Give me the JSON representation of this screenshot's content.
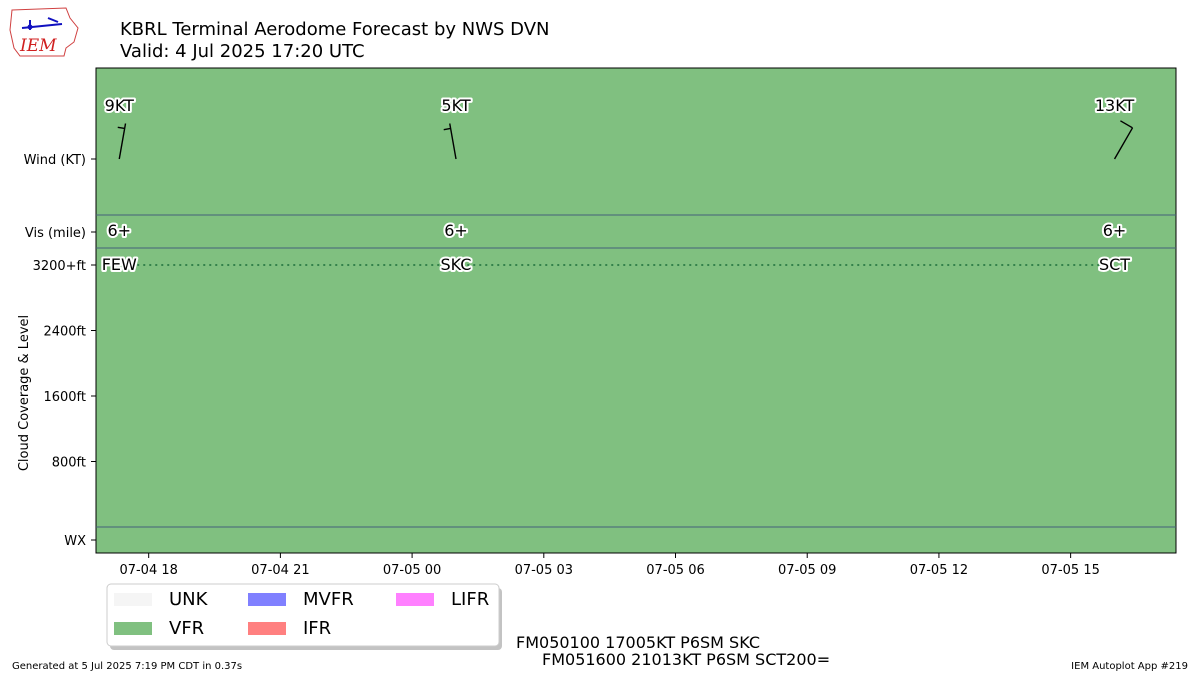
{
  "logo": {
    "text": "IEM"
  },
  "header": {
    "title_line1": "KBRL Terminal Aerodome Forecast by NWS DVN",
    "title_line2": "Valid: 4 Jul 2025 17:20 UTC"
  },
  "chart_data": {
    "type": "timeline",
    "category_colors": {
      "UNK": "#f5f5f5",
      "VFR": "#80c080",
      "MVFR": "#8080ff",
      "IFR": "#ff8080",
      "LIFR": "#ff80ff"
    },
    "row_labels": {
      "wind": "Wind (KT)",
      "vis": "Vis (mile)",
      "cloud_axis": "Cloud Coverage & Level",
      "wx": "WX"
    },
    "cloud_ticks": [
      {
        "label": "3200+ft",
        "level": 3200
      },
      {
        "label": "2400ft",
        "level": 2400
      },
      {
        "label": "1600ft",
        "level": 1600
      },
      {
        "label": "800ft",
        "level": 800
      }
    ],
    "x_range_hours": [
      -1.2,
      23.4
    ],
    "x_ticks": [
      {
        "label": "07-04 18",
        "hour": 0
      },
      {
        "label": "07-04 21",
        "hour": 3
      },
      {
        "label": "07-05 00",
        "hour": 6
      },
      {
        "label": "07-05 03",
        "hour": 9
      },
      {
        "label": "07-05 06",
        "hour": 12
      },
      {
        "label": "07-05 09",
        "hour": 15
      },
      {
        "label": "07-05 12",
        "hour": 18
      },
      {
        "label": "07-05 15",
        "hour": 21
      }
    ],
    "forecasts": [
      {
        "hour": -0.67,
        "wind_dir": 190,
        "wind_speed": 9,
        "wind_label": "9KT",
        "vis_label": "6+",
        "cloud_label": "FEW",
        "cloud_level": 3200,
        "category": "VFR"
      },
      {
        "hour": 7.0,
        "wind_dir": 170,
        "wind_speed": 5,
        "wind_label": "5KT",
        "vis_label": "6+",
        "cloud_label": "SKC",
        "cloud_level": 3200,
        "category": "VFR"
      },
      {
        "hour": 22.0,
        "wind_dir": 210,
        "wind_speed": 13,
        "wind_label": "13KT",
        "vis_label": "6+",
        "cloud_label": "SCT",
        "cloud_level": 3200,
        "category": "VFR"
      }
    ],
    "legend": [
      {
        "label": "UNK",
        "color": "#f5f5f5"
      },
      {
        "label": "VFR",
        "color": "#80c080"
      },
      {
        "label": "MVFR",
        "color": "#8080ff"
      },
      {
        "label": "IFR",
        "color": "#ff8080"
      },
      {
        "label": "LIFR",
        "color": "#ff80ff"
      }
    ]
  },
  "taf_text": {
    "line1": "FM050100 17005KT P6SM SKC",
    "line2": "FM051600 21013KT P6SM SCT200="
  },
  "footer": {
    "generated": "Generated at 5 Jul 2025 7:19 PM CDT in 0.37s",
    "app": "IEM Autoplot App #219"
  }
}
